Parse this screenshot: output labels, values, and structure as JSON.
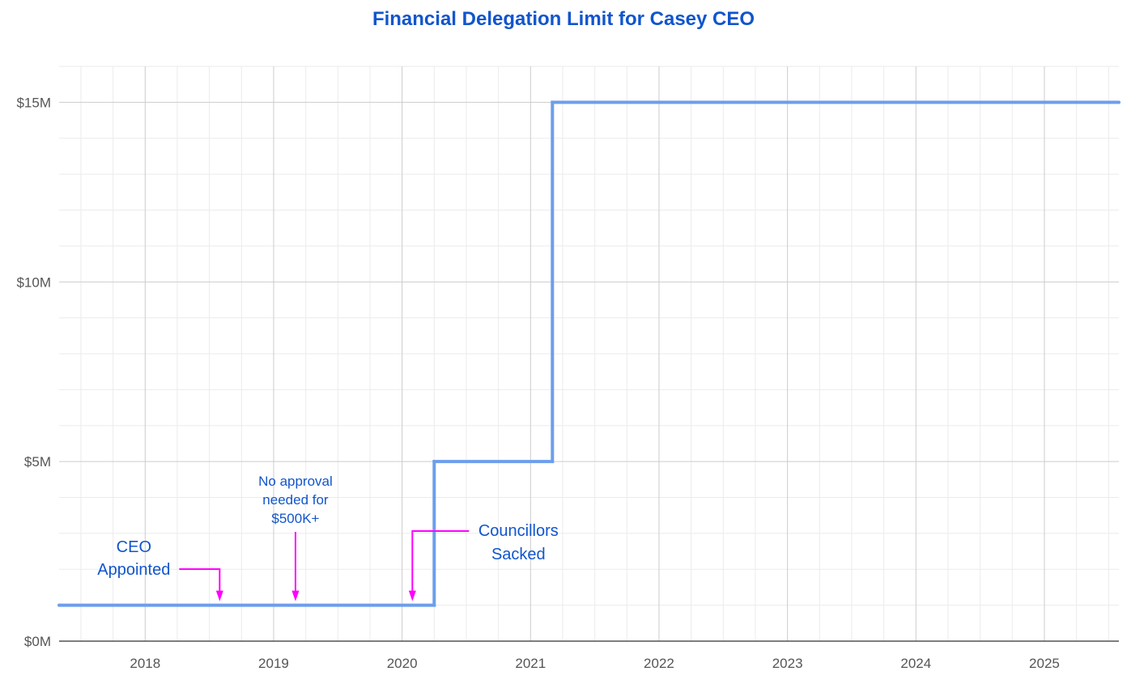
{
  "chart_data": {
    "type": "line",
    "step": true,
    "title": "Financial Delegation Limit for Casey CEO",
    "xlabel": "",
    "ylabel": "",
    "x_tick_labels": [
      "2018",
      "2019",
      "2020",
      "2021",
      "2022",
      "2023",
      "2024",
      "2025"
    ],
    "y_tick_labels": [
      "$0M",
      "$5M",
      "$10M",
      "$15M"
    ],
    "xlim": [
      2017.33,
      2025.58
    ],
    "ylim": [
      0,
      16
    ],
    "grid": true,
    "series": [
      {
        "color": "#6d9eeb",
        "points": [
          {
            "x": 2017.33,
            "y": 1
          },
          {
            "x": 2020.25,
            "y": 1
          },
          {
            "x": 2020.25,
            "y": 5
          },
          {
            "x": 2021.17,
            "y": 5
          },
          {
            "x": 2021.17,
            "y": 15
          },
          {
            "x": 2025.58,
            "y": 15
          }
        ]
      }
    ],
    "annotations": [
      {
        "lines": [
          "CEO",
          "Appointed"
        ],
        "x": 2018.58,
        "font_size": 20,
        "connector": "elbow-left"
      },
      {
        "lines": [
          "No approval",
          "needed for",
          "$500K+"
        ],
        "x": 2019.17,
        "font_size": 17,
        "connector": "vertical"
      },
      {
        "lines": [
          "Councillors",
          "Sacked"
        ],
        "x": 2020.08,
        "font_size": 20,
        "connector": "elbow-right"
      }
    ],
    "colors": {
      "title": "#1155cc",
      "annotation_text": "#1155cc",
      "annotation_arrow": "#ff00ff",
      "grid_major": "#cccccc",
      "grid_minor": "#ebebeb",
      "axis": "#333333",
      "tick_label": "#555555"
    }
  }
}
